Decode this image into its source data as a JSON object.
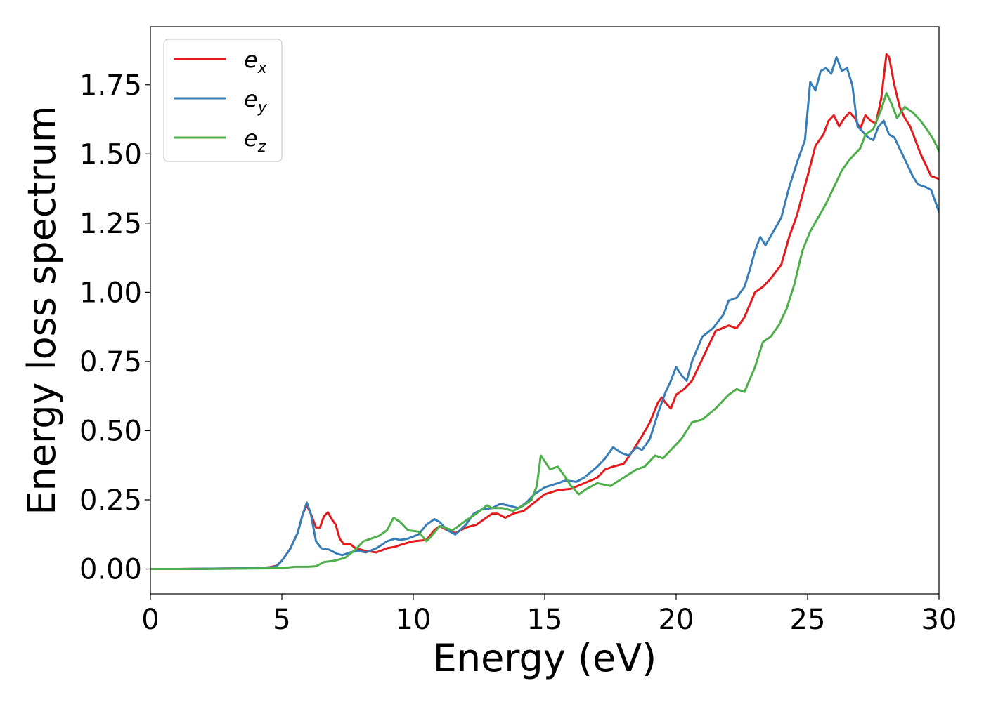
{
  "chart_data": {
    "type": "line",
    "title": "",
    "xlabel": "Energy (eV)",
    "ylabel": "Energy loss spectrum",
    "xlim": [
      0,
      30
    ],
    "ylim": [
      -0.09,
      1.96
    ],
    "xticks": [
      0,
      5,
      10,
      15,
      20,
      25,
      30
    ],
    "xtick_labels": [
      "0",
      "5",
      "10",
      "15",
      "20",
      "25",
      "30"
    ],
    "yticks": [
      0.0,
      0.25,
      0.5,
      0.75,
      1.0,
      1.25,
      1.5,
      1.75
    ],
    "ytick_labels": [
      "0.00",
      "0.25",
      "0.50",
      "0.75",
      "1.00",
      "1.25",
      "1.50",
      "1.75"
    ],
    "grid": false,
    "legend_position": "top-left",
    "series": [
      {
        "name": "e_x",
        "legend_base": "e",
        "legend_sub": "x",
        "color": "#e41a1c",
        "points": [
          [
            0,
            0.0
          ],
          [
            1,
            0.0
          ],
          [
            2,
            0.001
          ],
          [
            3,
            0.002
          ],
          [
            4,
            0.003
          ],
          [
            4.5,
            0.006
          ],
          [
            4.8,
            0.012
          ],
          [
            5.0,
            0.03
          ],
          [
            5.3,
            0.07
          ],
          [
            5.6,
            0.13
          ],
          [
            5.8,
            0.2
          ],
          [
            5.95,
            0.23
          ],
          [
            6.1,
            0.2
          ],
          [
            6.3,
            0.15
          ],
          [
            6.45,
            0.15
          ],
          [
            6.6,
            0.19
          ],
          [
            6.75,
            0.205
          ],
          [
            6.9,
            0.18
          ],
          [
            7.05,
            0.16
          ],
          [
            7.2,
            0.11
          ],
          [
            7.35,
            0.09
          ],
          [
            7.6,
            0.09
          ],
          [
            7.8,
            0.075
          ],
          [
            8.2,
            0.065
          ],
          [
            8.6,
            0.06
          ],
          [
            9.0,
            0.075
          ],
          [
            9.3,
            0.08
          ],
          [
            9.6,
            0.09
          ],
          [
            10.0,
            0.1
          ],
          [
            10.5,
            0.105
          ],
          [
            10.8,
            0.14
          ],
          [
            11.0,
            0.155
          ],
          [
            11.3,
            0.14
          ],
          [
            11.6,
            0.13
          ],
          [
            12.0,
            0.15
          ],
          [
            12.4,
            0.16
          ],
          [
            12.7,
            0.18
          ],
          [
            13.0,
            0.2
          ],
          [
            13.2,
            0.2
          ],
          [
            13.5,
            0.185
          ],
          [
            13.8,
            0.2
          ],
          [
            14.2,
            0.21
          ],
          [
            14.6,
            0.24
          ],
          [
            15.0,
            0.27
          ],
          [
            15.5,
            0.285
          ],
          [
            16.0,
            0.29
          ],
          [
            16.5,
            0.31
          ],
          [
            17.0,
            0.33
          ],
          [
            17.3,
            0.36
          ],
          [
            17.6,
            0.37
          ],
          [
            18.0,
            0.38
          ],
          [
            18.3,
            0.42
          ],
          [
            18.7,
            0.48
          ],
          [
            19.0,
            0.53
          ],
          [
            19.3,
            0.6
          ],
          [
            19.45,
            0.62
          ],
          [
            19.6,
            0.6
          ],
          [
            19.8,
            0.58
          ],
          [
            20.0,
            0.63
          ],
          [
            20.3,
            0.65
          ],
          [
            20.6,
            0.68
          ],
          [
            21.0,
            0.76
          ],
          [
            21.5,
            0.86
          ],
          [
            22.0,
            0.88
          ],
          [
            22.3,
            0.87
          ],
          [
            22.6,
            0.91
          ],
          [
            23.0,
            1.0
          ],
          [
            23.3,
            1.02
          ],
          [
            23.6,
            1.05
          ],
          [
            24.0,
            1.1
          ],
          [
            24.3,
            1.2
          ],
          [
            24.6,
            1.28
          ],
          [
            25.0,
            1.42
          ],
          [
            25.3,
            1.53
          ],
          [
            25.6,
            1.57
          ],
          [
            25.8,
            1.62
          ],
          [
            26.0,
            1.64
          ],
          [
            26.2,
            1.6
          ],
          [
            26.4,
            1.63
          ],
          [
            26.6,
            1.65
          ],
          [
            26.8,
            1.63
          ],
          [
            27.0,
            1.59
          ],
          [
            27.2,
            1.64
          ],
          [
            27.4,
            1.62
          ],
          [
            27.6,
            1.61
          ],
          [
            27.8,
            1.7
          ],
          [
            28.0,
            1.86
          ],
          [
            28.1,
            1.85
          ],
          [
            28.3,
            1.75
          ],
          [
            28.5,
            1.67
          ],
          [
            28.7,
            1.63
          ],
          [
            28.9,
            1.6
          ],
          [
            29.1,
            1.55
          ],
          [
            29.3,
            1.5
          ],
          [
            29.5,
            1.46
          ],
          [
            29.7,
            1.42
          ],
          [
            30.0,
            1.41
          ]
        ]
      },
      {
        "name": "e_y",
        "legend_base": "e",
        "legend_sub": "y",
        "color": "#377eb8",
        "points": [
          [
            0,
            0.0
          ],
          [
            1,
            0.0
          ],
          [
            2,
            0.001
          ],
          [
            3,
            0.002
          ],
          [
            4,
            0.003
          ],
          [
            4.5,
            0.005
          ],
          [
            4.8,
            0.01
          ],
          [
            5.0,
            0.03
          ],
          [
            5.3,
            0.07
          ],
          [
            5.6,
            0.13
          ],
          [
            5.8,
            0.2
          ],
          [
            5.95,
            0.24
          ],
          [
            6.1,
            0.2
          ],
          [
            6.3,
            0.1
          ],
          [
            6.5,
            0.075
          ],
          [
            6.8,
            0.07
          ],
          [
            7.1,
            0.055
          ],
          [
            7.3,
            0.05
          ],
          [
            7.6,
            0.06
          ],
          [
            7.9,
            0.065
          ],
          [
            8.2,
            0.06
          ],
          [
            8.6,
            0.075
          ],
          [
            9.0,
            0.1
          ],
          [
            9.3,
            0.11
          ],
          [
            9.5,
            0.105
          ],
          [
            9.8,
            0.11
          ],
          [
            10.2,
            0.125
          ],
          [
            10.5,
            0.16
          ],
          [
            10.8,
            0.18
          ],
          [
            11.0,
            0.17
          ],
          [
            11.3,
            0.14
          ],
          [
            11.6,
            0.125
          ],
          [
            12.0,
            0.16
          ],
          [
            12.3,
            0.2
          ],
          [
            12.6,
            0.215
          ],
          [
            13.0,
            0.22
          ],
          [
            13.3,
            0.235
          ],
          [
            13.6,
            0.23
          ],
          [
            14.0,
            0.22
          ],
          [
            14.3,
            0.24
          ],
          [
            14.6,
            0.27
          ],
          [
            15.0,
            0.295
          ],
          [
            15.5,
            0.31
          ],
          [
            15.8,
            0.32
          ],
          [
            16.2,
            0.315
          ],
          [
            16.5,
            0.33
          ],
          [
            17.0,
            0.37
          ],
          [
            17.3,
            0.4
          ],
          [
            17.6,
            0.44
          ],
          [
            17.9,
            0.42
          ],
          [
            18.2,
            0.41
          ],
          [
            18.5,
            0.44
          ],
          [
            18.7,
            0.43
          ],
          [
            19.0,
            0.47
          ],
          [
            19.3,
            0.56
          ],
          [
            19.6,
            0.64
          ],
          [
            19.8,
            0.68
          ],
          [
            20.0,
            0.73
          ],
          [
            20.2,
            0.7
          ],
          [
            20.4,
            0.68
          ],
          [
            20.6,
            0.75
          ],
          [
            21.0,
            0.84
          ],
          [
            21.4,
            0.87
          ],
          [
            21.8,
            0.92
          ],
          [
            22.0,
            0.97
          ],
          [
            22.3,
            0.98
          ],
          [
            22.6,
            1.02
          ],
          [
            22.8,
            1.08
          ],
          [
            23.0,
            1.15
          ],
          [
            23.2,
            1.2
          ],
          [
            23.4,
            1.17
          ],
          [
            23.7,
            1.22
          ],
          [
            24.0,
            1.27
          ],
          [
            24.3,
            1.38
          ],
          [
            24.6,
            1.47
          ],
          [
            24.9,
            1.55
          ],
          [
            25.1,
            1.76
          ],
          [
            25.3,
            1.73
          ],
          [
            25.5,
            1.8
          ],
          [
            25.7,
            1.81
          ],
          [
            25.9,
            1.79
          ],
          [
            26.1,
            1.85
          ],
          [
            26.3,
            1.8
          ],
          [
            26.5,
            1.81
          ],
          [
            26.7,
            1.75
          ],
          [
            26.9,
            1.6
          ],
          [
            27.1,
            1.58
          ],
          [
            27.3,
            1.56
          ],
          [
            27.5,
            1.55
          ],
          [
            27.7,
            1.6
          ],
          [
            27.9,
            1.62
          ],
          [
            28.1,
            1.57
          ],
          [
            28.3,
            1.56
          ],
          [
            28.5,
            1.52
          ],
          [
            28.8,
            1.46
          ],
          [
            29.0,
            1.42
          ],
          [
            29.2,
            1.39
          ],
          [
            29.5,
            1.38
          ],
          [
            29.7,
            1.37
          ],
          [
            30.0,
            1.29
          ]
        ]
      },
      {
        "name": "e_z",
        "legend_base": "e",
        "legend_sub": "z",
        "color": "#4daf4a",
        "points": [
          [
            0,
            0.0
          ],
          [
            1,
            0.0
          ],
          [
            2,
            0.0
          ],
          [
            3,
            0.001
          ],
          [
            4,
            0.002
          ],
          [
            5.0,
            0.003
          ],
          [
            5.5,
            0.008
          ],
          [
            6.0,
            0.008
          ],
          [
            6.3,
            0.01
          ],
          [
            6.6,
            0.025
          ],
          [
            7.0,
            0.03
          ],
          [
            7.4,
            0.04
          ],
          [
            7.8,
            0.07
          ],
          [
            8.1,
            0.1
          ],
          [
            8.4,
            0.11
          ],
          [
            8.7,
            0.12
          ],
          [
            9.0,
            0.14
          ],
          [
            9.25,
            0.185
          ],
          [
            9.5,
            0.17
          ],
          [
            9.8,
            0.14
          ],
          [
            10.2,
            0.135
          ],
          [
            10.5,
            0.1
          ],
          [
            10.7,
            0.12
          ],
          [
            11.0,
            0.155
          ],
          [
            11.5,
            0.14
          ],
          [
            12.0,
            0.175
          ],
          [
            12.4,
            0.2
          ],
          [
            12.8,
            0.23
          ],
          [
            13.0,
            0.22
          ],
          [
            13.4,
            0.22
          ],
          [
            13.8,
            0.21
          ],
          [
            14.2,
            0.23
          ],
          [
            14.5,
            0.25
          ],
          [
            14.7,
            0.3
          ],
          [
            14.85,
            0.41
          ],
          [
            15.0,
            0.39
          ],
          [
            15.2,
            0.36
          ],
          [
            15.5,
            0.37
          ],
          [
            15.8,
            0.33
          ],
          [
            16.0,
            0.3
          ],
          [
            16.3,
            0.27
          ],
          [
            16.6,
            0.29
          ],
          [
            17.0,
            0.31
          ],
          [
            17.5,
            0.3
          ],
          [
            18.0,
            0.33
          ],
          [
            18.5,
            0.36
          ],
          [
            18.8,
            0.37
          ],
          [
            19.2,
            0.41
          ],
          [
            19.5,
            0.4
          ],
          [
            19.8,
            0.43
          ],
          [
            20.2,
            0.47
          ],
          [
            20.6,
            0.53
          ],
          [
            21.0,
            0.54
          ],
          [
            21.5,
            0.58
          ],
          [
            22.0,
            0.63
          ],
          [
            22.3,
            0.65
          ],
          [
            22.6,
            0.64
          ],
          [
            23.0,
            0.73
          ],
          [
            23.3,
            0.82
          ],
          [
            23.6,
            0.84
          ],
          [
            23.9,
            0.88
          ],
          [
            24.2,
            0.94
          ],
          [
            24.5,
            1.03
          ],
          [
            24.8,
            1.15
          ],
          [
            25.1,
            1.22
          ],
          [
            25.4,
            1.27
          ],
          [
            25.7,
            1.32
          ],
          [
            26.0,
            1.38
          ],
          [
            26.3,
            1.44
          ],
          [
            26.6,
            1.48
          ],
          [
            27.0,
            1.52
          ],
          [
            27.2,
            1.57
          ],
          [
            27.5,
            1.59
          ],
          [
            27.8,
            1.66
          ],
          [
            28.0,
            1.72
          ],
          [
            28.2,
            1.68
          ],
          [
            28.4,
            1.63
          ],
          [
            28.7,
            1.67
          ],
          [
            29.0,
            1.65
          ],
          [
            29.3,
            1.62
          ],
          [
            29.6,
            1.58
          ],
          [
            29.8,
            1.55
          ],
          [
            30.0,
            1.51
          ]
        ]
      }
    ]
  }
}
